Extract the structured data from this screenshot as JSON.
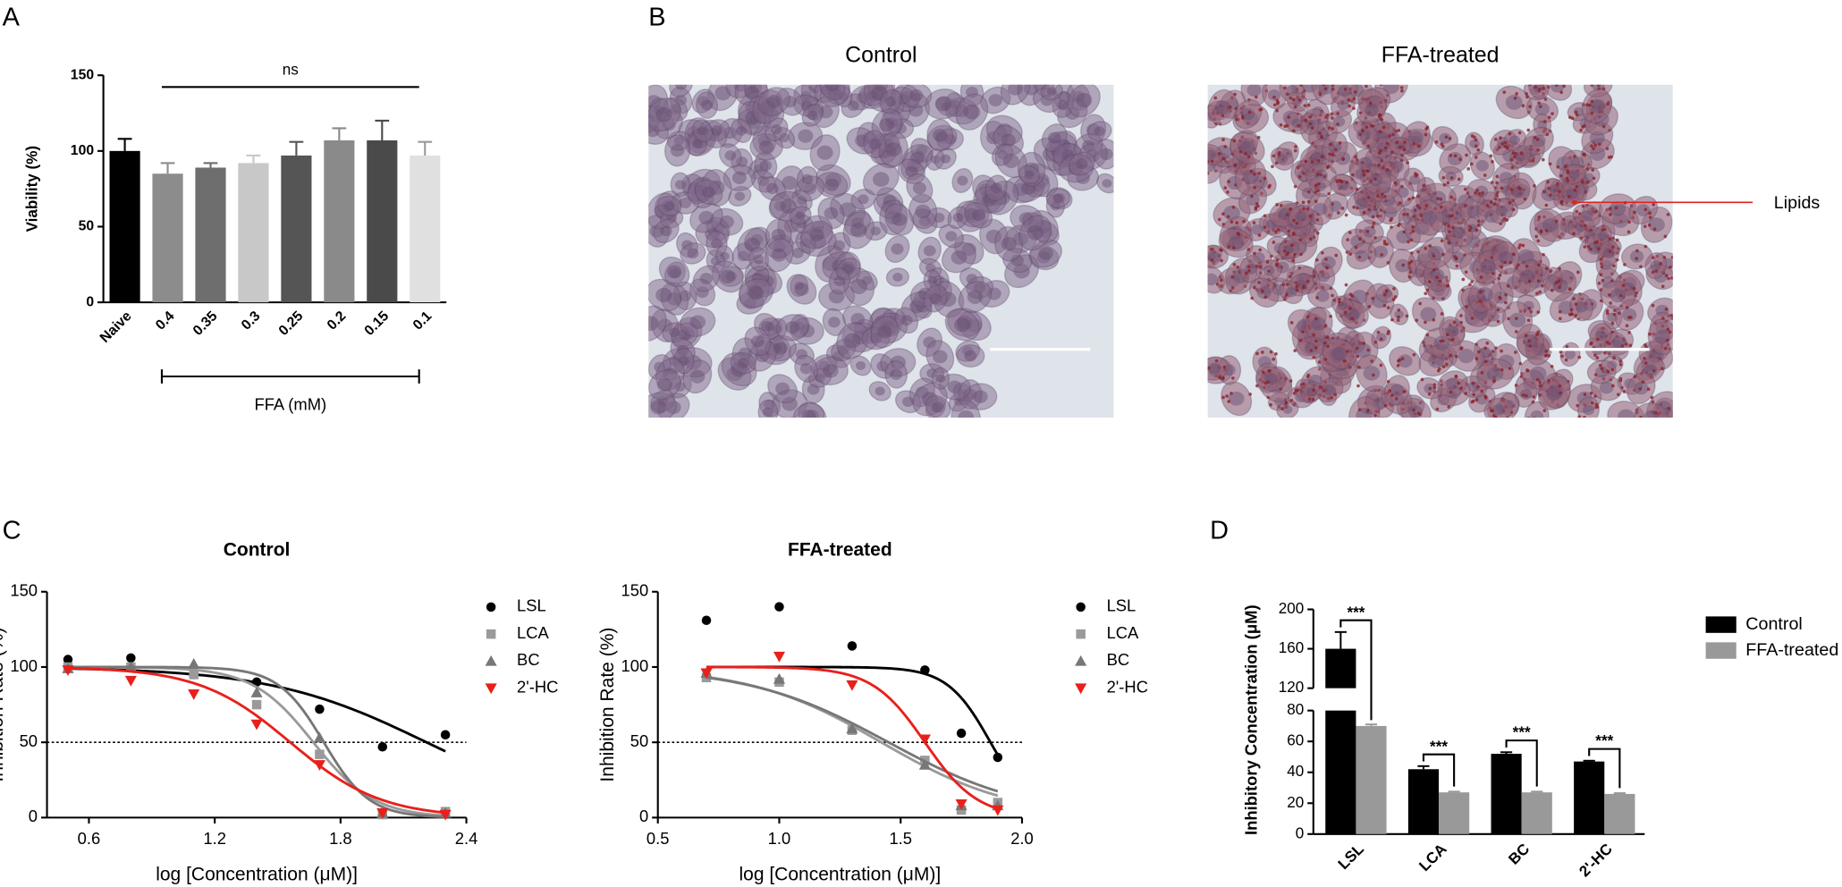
{
  "images": {
    "panel": "B",
    "items": [
      {
        "title": "Control"
      },
      {
        "title": "FFA-treated",
        "annotation": "Lipids"
      }
    ]
  },
  "chart_data": [
    {
      "type": "bar",
      "panel": "A",
      "ylabel": "Viability (%)",
      "categories": [
        "Naive",
        "0.4",
        "0.35",
        "0.3",
        "0.25",
        "0.2",
        "0.15",
        "0.1"
      ],
      "values": [
        100,
        85,
        89,
        92,
        97,
        107,
        107,
        97
      ],
      "errors": [
        8,
        7,
        3,
        5,
        9,
        8,
        13,
        9
      ],
      "colors": [
        "#000000",
        "#8c8c8c",
        "#6e6e6e",
        "#c8c8c8",
        "#555555",
        "#8a8a8a",
        "#4a4a4a",
        "#e0e0e0"
      ],
      "ylim": [
        0,
        150
      ],
      "yticks": [
        0,
        50,
        100,
        150
      ],
      "annotation": "ns",
      "group_label": "FFA (mM)"
    },
    {
      "type": "dose_response",
      "panel": "C",
      "title": "Control",
      "xlabel": "log [Concentration (μM)]",
      "ylabel": "Inhibition Rate (%)",
      "x": [
        0.5,
        0.8,
        1.1,
        1.4,
        1.7,
        2.0,
        2.3
      ],
      "xlim": [
        0.4,
        2.4
      ],
      "xticks": [
        0.6,
        1.2,
        1.8,
        2.4
      ],
      "ylim": [
        0,
        150
      ],
      "yticks": [
        0,
        50,
        100,
        150
      ],
      "reference_line": 50,
      "series": [
        {
          "name": "LSL",
          "color": "#000000",
          "marker": "circle",
          "values": [
            105,
            106,
            95,
            90,
            72,
            47,
            55
          ],
          "fit": {
            "top": 100,
            "bottom": 0,
            "log_ec50": 2.21,
            "hill": 1.16
          }
        },
        {
          "name": "LCA",
          "color": "#9a9a9a",
          "marker": "square",
          "values": [
            100,
            100,
            95,
            75,
            42,
            2,
            4
          ],
          "fit": {
            "top": 100,
            "bottom": 0,
            "log_ec50": 1.67,
            "hill": 3
          }
        },
        {
          "name": "BC",
          "color": "#777777",
          "marker": "triangle",
          "values": [
            99,
            100,
            102,
            83,
            53,
            3,
            3
          ],
          "fit": {
            "top": 100,
            "bottom": 0,
            "log_ec50": 1.72,
            "hill": 4
          }
        },
        {
          "name": "2'-HC",
          "color": "#e8201c",
          "marker": "triangle-down",
          "values": [
            98,
            91,
            82,
            62,
            35,
            3,
            2
          ],
          "fit": {
            "top": 100,
            "bottom": 0,
            "log_ec50": 1.56,
            "hill": 2
          }
        }
      ]
    },
    {
      "type": "dose_response",
      "title": "FFA-treated",
      "xlabel": "log [Concentration (μM)]",
      "ylabel": "Inhibition Rate (%)",
      "x": [
        0.7,
        1.0,
        1.3,
        1.6,
        1.75,
        1.9
      ],
      "xlim": [
        0.5,
        2.0
      ],
      "xticks": [
        0.5,
        {
          "value": 1,
          "label": "1.0"
        },
        1.5,
        {
          "value": 2,
          "label": "2.0"
        }
      ],
      "ylim": [
        0,
        150
      ],
      "yticks": [
        0,
        50,
        100,
        150
      ],
      "reference_line": 50,
      "series": [
        {
          "name": "LSL",
          "color": "#000000",
          "marker": "circle",
          "values": [
            131,
            140,
            114,
            98,
            56,
            40
          ],
          "fit": {
            "top": 100,
            "bottom": 0,
            "log_ec50": 1.87,
            "hill": 4.9
          }
        },
        {
          "name": "LCA",
          "color": "#9a9a9a",
          "marker": "square",
          "values": [
            93,
            90,
            58,
            38,
            5,
            10
          ],
          "fit": {
            "top": 100,
            "bottom": 0,
            "log_ec50": 1.42,
            "hill": 1.6
          }
        },
        {
          "name": "BC",
          "color": "#777777",
          "marker": "triangle",
          "values": [
            96,
            92,
            59,
            35,
            8,
            8
          ],
          "fit": {
            "top": 100,
            "bottom": 0,
            "log_ec50": 1.45,
            "hill": 1.5
          }
        },
        {
          "name": "2'-HC",
          "color": "#e8201c",
          "marker": "triangle-down",
          "values": [
            96,
            107,
            88,
            52,
            9,
            5
          ],
          "fit": {
            "top": 100,
            "bottom": 0,
            "log_ec50": 1.6,
            "hill": 4
          }
        }
      ]
    },
    {
      "type": "broken_bar",
      "panel": "D",
      "ylabel": "Inhibitory Concentration (μM)",
      "categories": [
        "LSL",
        "LCA",
        "BC",
        "2'-HC"
      ],
      "axis_segments": [
        {
          "ylim": [
            0,
            80
          ],
          "yticks": [
            0,
            20,
            40,
            60,
            80
          ]
        },
        {
          "ylim": [
            120,
            200
          ],
          "yticks": [
            120,
            160,
            200
          ]
        }
      ],
      "series": [
        {
          "name": "Control",
          "color": "#000000",
          "values": [
            160,
            42,
            52,
            47
          ],
          "errors": [
            17,
            2,
            1,
            0.5
          ]
        },
        {
          "name": "FFA-treated",
          "color": "#999999",
          "values": [
            70,
            27,
            27,
            26
          ],
          "errors": [
            1,
            0.5,
            0.5,
            0.5
          ]
        }
      ],
      "significance": [
        "***",
        "***",
        "***",
        "***"
      ]
    }
  ]
}
